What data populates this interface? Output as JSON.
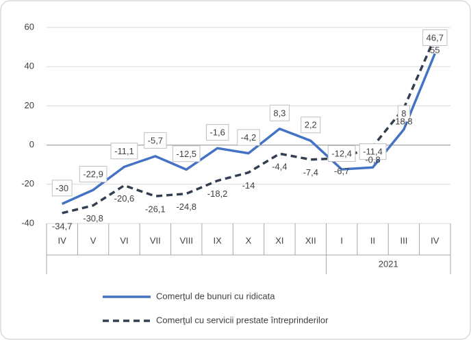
{
  "chart_data": {
    "type": "line",
    "categories": [
      "IV",
      "V",
      "VI",
      "VII",
      "VIII",
      "IX",
      "X",
      "XI",
      "XII",
      "I",
      "II",
      "III",
      "IV"
    ],
    "groups": [
      {
        "label": "2021",
        "start": 9,
        "end": 12
      }
    ],
    "series": [
      {
        "name": "Comerţul de bunuri cu ridicata",
        "color": "#4472c4",
        "dash": false,
        "values": [
          -30,
          -22.9,
          -11.1,
          -5.7,
          -12.5,
          -1.6,
          -4.2,
          8.3,
          2.2,
          -12.4,
          -11.4,
          8,
          46.7
        ],
        "value_labels": [
          "-30",
          "-22,9",
          "-11,1",
          "-5,7",
          "-12,5",
          "-1,6",
          "-4,2",
          "8,3",
          "2,2",
          "-12,4",
          "-11,4",
          "8",
          "46,7"
        ]
      },
      {
        "name": "Comerţul cu servicii prestate întreprinderilor",
        "color": "#333f50",
        "dash": true,
        "values": [
          -34.7,
          -30.8,
          -20.6,
          -26.1,
          -24.8,
          -18.2,
          -14,
          -4.4,
          -7.4,
          -6.7,
          -0.8,
          18.8,
          55
        ],
        "value_labels": [
          "-34,7",
          "-30,8",
          "-20,6",
          "-26,1",
          "-24,8",
          "-18,2",
          "-14",
          "-4,4",
          "-7,4",
          "-6,7",
          "-0,8",
          "18,8",
          "55"
        ]
      }
    ],
    "ylim": [
      -40,
      60
    ],
    "yticks": [
      -40,
      -20,
      0,
      20,
      40,
      60
    ],
    "grid": true,
    "legend": "bottom"
  }
}
